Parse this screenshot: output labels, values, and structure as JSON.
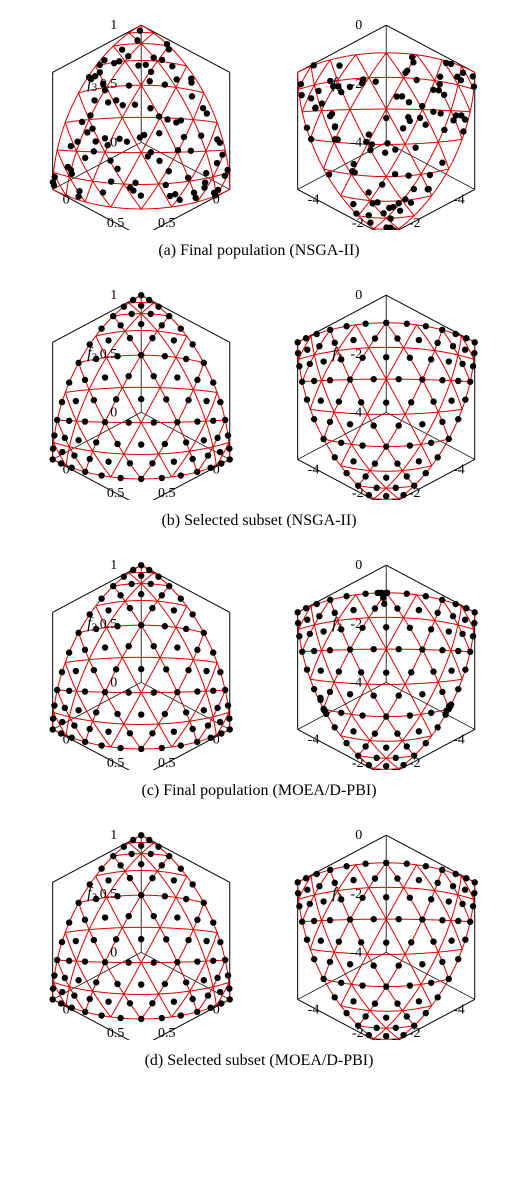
{
  "global": {
    "background_color": "#ffffff",
    "grid_color": "#dd0000",
    "cube_edge_color": "#000000",
    "point_color": "#000000",
    "point_radius": 3.2,
    "axis_label_fontsize": 16,
    "tick_fontsize": 14,
    "caption_fontsize": 16,
    "ital_f": "f",
    "surface_mesh_rings": 8
  },
  "panels": [
    {
      "id": "a",
      "caption": "(a) Final population (NSGA-II)",
      "left": {
        "axis": "f",
        "range": [
          0,
          1
        ],
        "ticks": [
          0.5
        ],
        "shape": "convex",
        "dist": "random",
        "npts": 100
      },
      "right": {
        "axis": "f",
        "range": [
          -4,
          0
        ],
        "ticks": [
          -2
        ],
        "shape": "concave",
        "dist": "random",
        "npts": 100
      }
    },
    {
      "id": "b",
      "caption": "(b) Selected subset (NSGA-II)",
      "left": {
        "axis": "f",
        "range": [
          0,
          1
        ],
        "ticks": [
          0.5
        ],
        "shape": "convex",
        "dist": "uniform",
        "npts": 91
      },
      "right": {
        "axis": "f",
        "range": [
          -4,
          0
        ],
        "ticks": [
          -2
        ],
        "shape": "concave",
        "dist": "uniform",
        "npts": 91
      }
    },
    {
      "id": "c",
      "caption": "(c) Final population (MOEA/D-PBI)",
      "left": {
        "axis": "f",
        "range": [
          0,
          1
        ],
        "ticks": [
          0.5
        ],
        "shape": "convex",
        "dist": "uniform",
        "npts": 91
      },
      "right": {
        "axis": "f",
        "range": [
          -4,
          0
        ],
        "ticks": [
          -2
        ],
        "shape": "concave",
        "dist": "cluster",
        "npts": 91
      }
    },
    {
      "id": "d",
      "caption": "(d) Selected subset (MOEA/D-PBI)",
      "left": {
        "axis": "f",
        "range": [
          0,
          1
        ],
        "ticks": [
          0.5
        ],
        "shape": "convex",
        "dist": "uniform",
        "npts": 91
      },
      "right": {
        "axis": "f",
        "range": [
          -4,
          0
        ],
        "ticks": [
          -2
        ],
        "shape": "concave",
        "dist": "uniform",
        "npts": 91
      }
    }
  ]
}
